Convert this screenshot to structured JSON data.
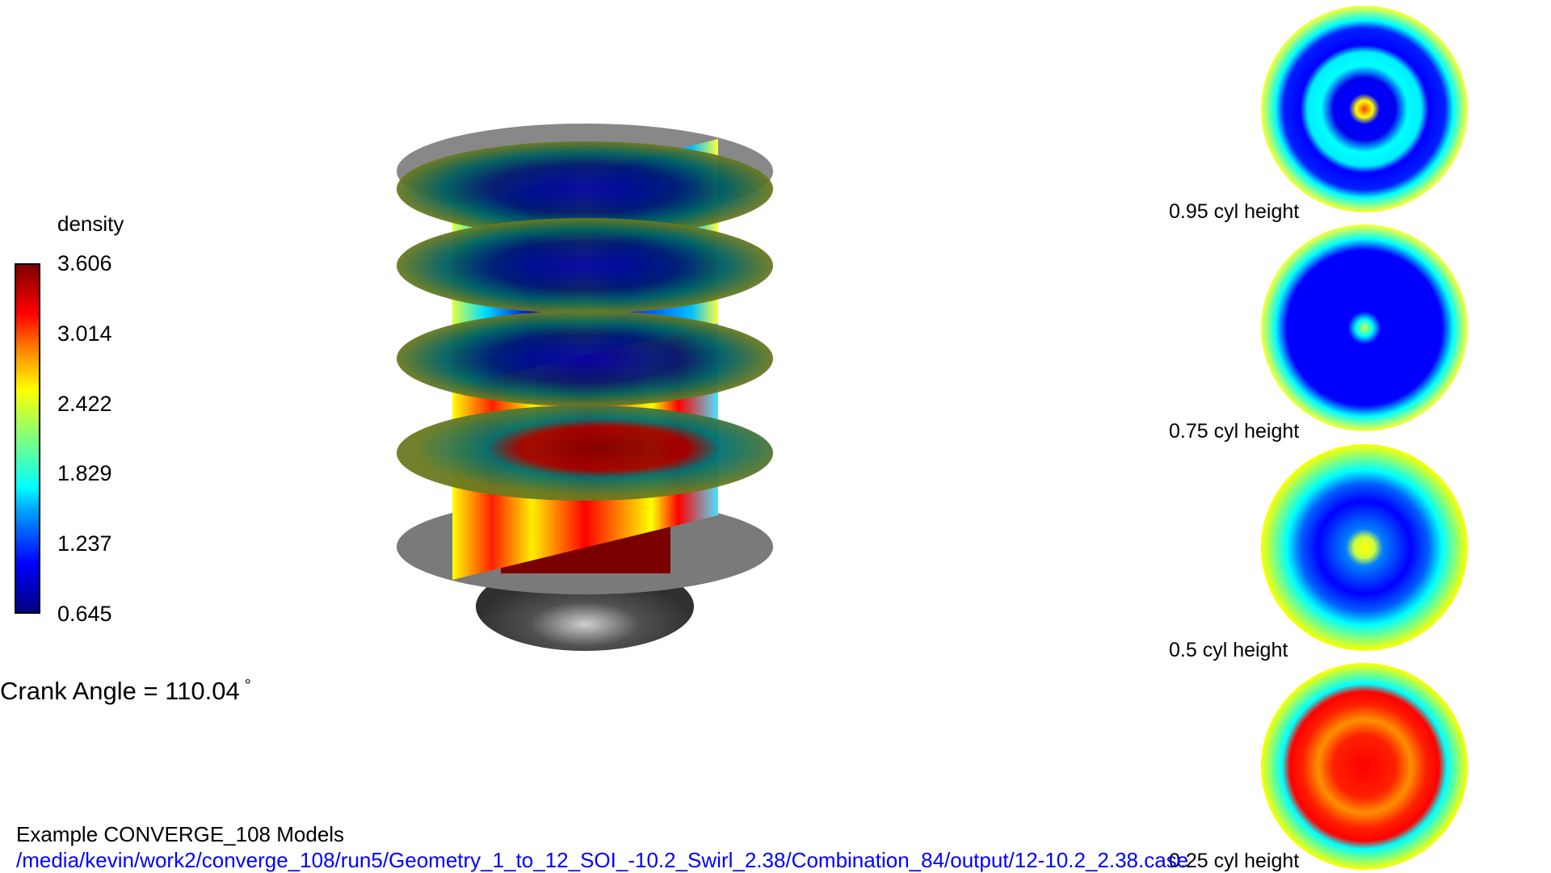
{
  "colorbar": {
    "title": "density",
    "ticks": [
      "3.606",
      "3.014",
      "2.422",
      "1.829",
      "1.237",
      "0.645"
    ],
    "colormap": "jet"
  },
  "crank_angle": {
    "label": "Crank Angle = 110.04",
    "unit": "°"
  },
  "slices": [
    {
      "label": "0.95 cyl height"
    },
    {
      "label": "0.75 cyl height"
    },
    {
      "label": "0.5 cyl height"
    },
    {
      "label": "0.25 cyl height"
    }
  ],
  "footer": {
    "title": "Example CONVERGE_108 Models",
    "path": "/media/kevin/work2/converge_108/run5/Geometry_1_to_12_SOI_-10.2_Swirl_2.38/Combination_84/output/12-10.2_2.38.case"
  }
}
